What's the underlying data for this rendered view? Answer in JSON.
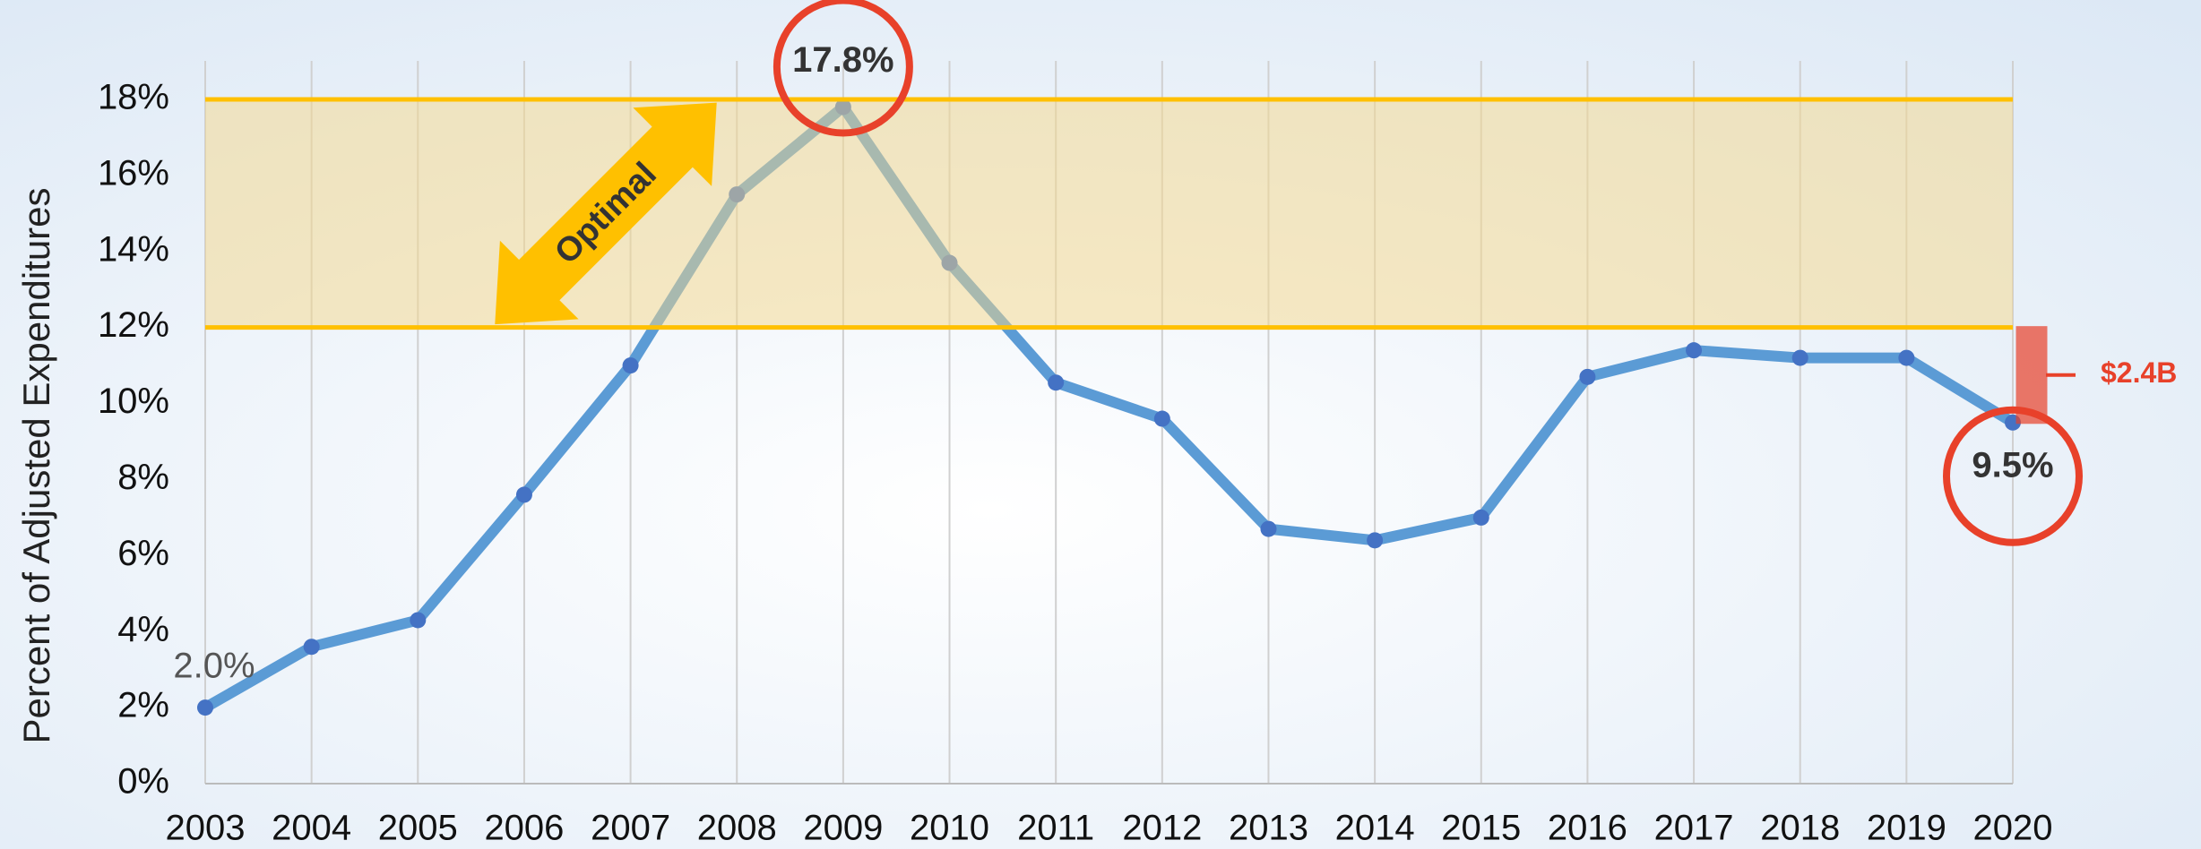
{
  "chart_data": {
    "type": "line",
    "y_label": "Percent of Adjusted Expenditures",
    "categories": [
      "2003",
      "2004",
      "2005",
      "2006",
      "2007",
      "2008",
      "2009",
      "2010",
      "2011",
      "2012",
      "2013",
      "2014",
      "2015",
      "2016",
      "2017",
      "2018",
      "2019",
      "2020"
    ],
    "values": [
      2.0,
      3.6,
      4.3,
      7.6,
      11.0,
      15.5,
      17.8,
      13.7,
      10.55,
      9.6,
      6.7,
      6.4,
      7.0,
      10.7,
      11.4,
      11.2,
      11.2,
      9.5
    ],
    "value_labels": [
      "2.0%",
      null,
      null,
      null,
      null,
      null,
      "17.8%",
      null,
      null,
      null,
      null,
      null,
      null,
      null,
      null,
      null,
      null,
      "9.5%"
    ],
    "color": "#5b9bd5",
    "marker_color": "#4472c4",
    "ylim": [
      0,
      18
    ],
    "yticks": [
      {
        "value": 0,
        "label": "0%"
      },
      {
        "value": 2,
        "label": "2%"
      },
      {
        "value": 4,
        "label": "4%"
      },
      {
        "value": 6,
        "label": "6%"
      },
      {
        "value": 8,
        "label": "8%"
      },
      {
        "value": 10,
        "label": "10%"
      },
      {
        "value": 12,
        "label": "12%"
      },
      {
        "value": 14,
        "label": "14%"
      },
      {
        "value": 16,
        "label": "16%"
      },
      {
        "value": 18,
        "label": "18%"
      }
    ],
    "grid": true,
    "band": {
      "from": 12,
      "to": 18,
      "label": "Optimal",
      "color": "#f5d78a",
      "line_color": "#ffc000"
    },
    "gap_label": "$2.4B",
    "highlight_color": "#e8412a"
  }
}
